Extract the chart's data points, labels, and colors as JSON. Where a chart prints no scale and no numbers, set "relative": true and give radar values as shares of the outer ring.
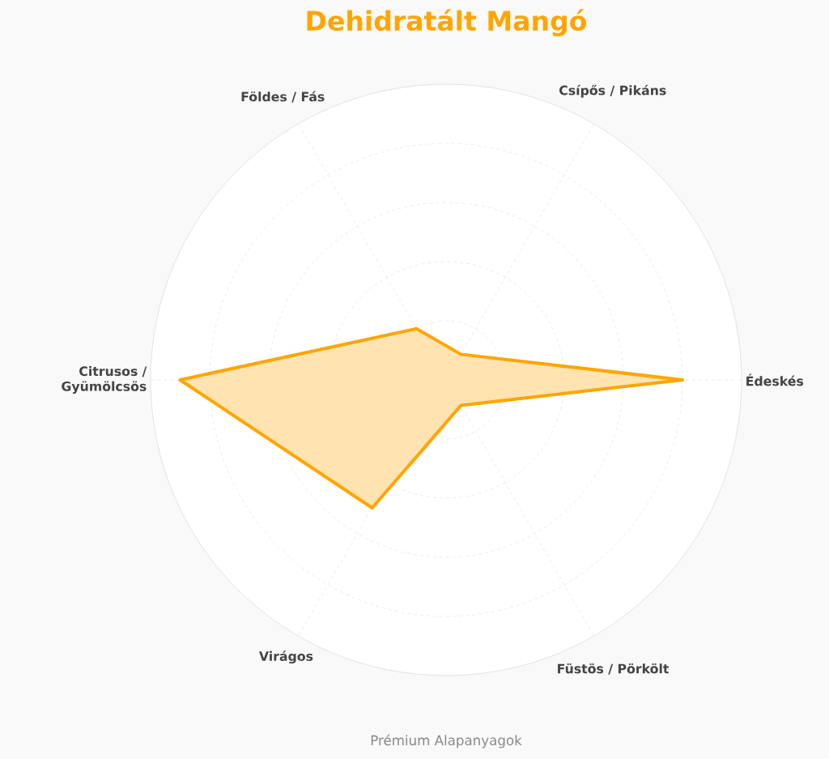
{
  "chart_data": {
    "type": "radar",
    "title": "Dehidratált Mangó",
    "categories": [
      "Csípős / Pikáns",
      "Édeskés",
      "Füstös / Pörkölt",
      "Virágos",
      "Citrusos / Gyümölcsös",
      "Földes / Fás"
    ],
    "series": [
      {
        "color": "#ffa500",
        "values": [
          0.1,
          0.8,
          0.1,
          0.5,
          0.9,
          0.2
        ]
      }
    ],
    "relative": true,
    "grid": true,
    "marker": "none",
    "line_style": "solid",
    "annotations": [
      "Prémium Alapanyagok"
    ]
  }
}
